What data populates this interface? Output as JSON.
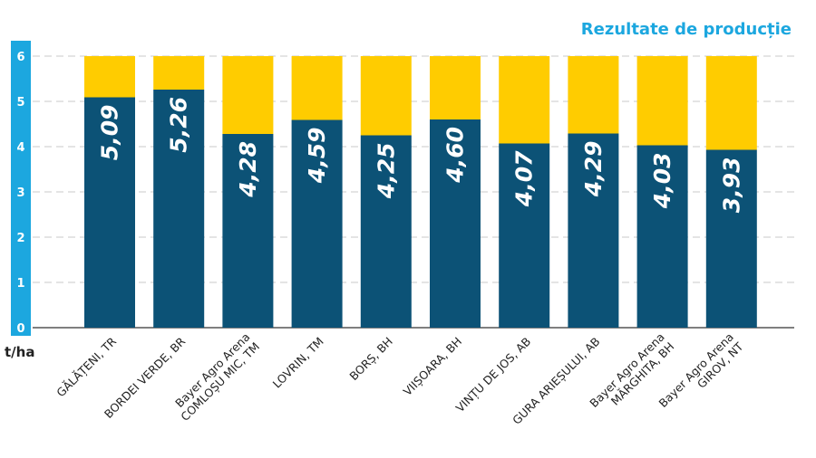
{
  "title": "Rezultate de producție",
  "y_unit_label": "t/ha",
  "colors": {
    "value": "#0c5276",
    "remainder": "#ffcc00",
    "axis": "#1ca7df",
    "grid": "#c8c8c8"
  },
  "chart_data": {
    "type": "bar",
    "stacked": true,
    "title": "Rezultate de producție",
    "ylabel": "t/ha",
    "ylim": [
      0,
      6
    ],
    "yticks": [
      0,
      1,
      2,
      3,
      4,
      5,
      6
    ],
    "grid": true,
    "legend": "none",
    "categories": [
      [
        "GĂLĂȚENI, TR"
      ],
      [
        "BORDEI VERDE, BR"
      ],
      [
        "Bayer Agro Arena",
        "COMLOȘU MIC, TM"
      ],
      [
        "LOVRIN, TM"
      ],
      [
        "BORȘ, BH"
      ],
      [
        "VIIȘOARA, BH"
      ],
      [
        "VINȚU DE JOS, AB"
      ],
      [
        "GURA ARIEȘULUI, AB"
      ],
      [
        "Bayer Agro Arena",
        "MĂRGHITA, BH"
      ],
      [
        "Bayer Agro Arena",
        "GIROV, NT"
      ]
    ],
    "values": [
      5.09,
      5.26,
      4.28,
      4.59,
      4.25,
      4.6,
      4.07,
      4.29,
      4.03,
      3.93
    ],
    "value_labels": [
      "5,09",
      "5,26",
      "4,28",
      "4,59",
      "4,25",
      "4,60",
      "4,07",
      "4,29",
      "4,03",
      "3,93"
    ],
    "max": 6
  }
}
